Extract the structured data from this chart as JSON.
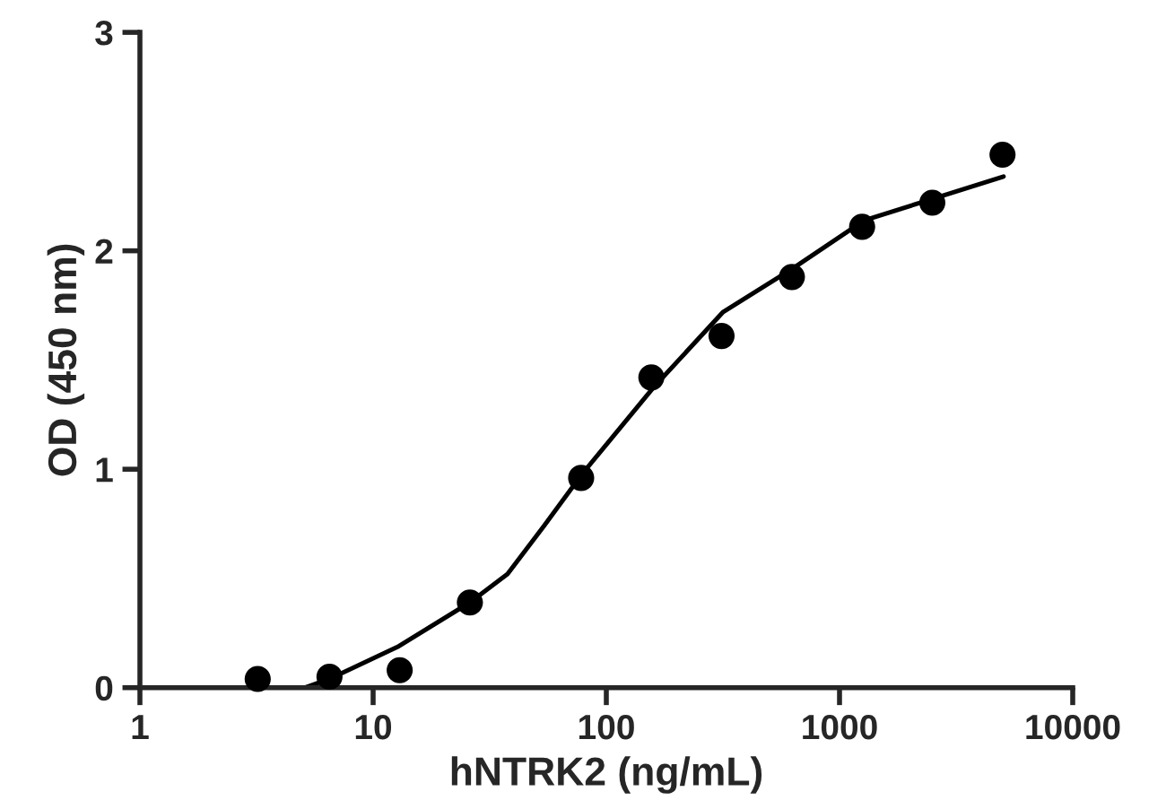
{
  "chart_data": {
    "type": "scatter",
    "xlabel": "hNTRK2 (ng/mL)",
    "ylabel": "OD (450 nm)",
    "log": "x",
    "xlim": [
      1,
      10000
    ],
    "xticks": [
      1,
      10,
      100,
      1000,
      10000
    ],
    "ylim": [
      0,
      3
    ],
    "yticks": [
      0,
      1,
      2,
      3
    ],
    "grid": false,
    "legend": false,
    "series": [
      {
        "marker": "circle",
        "color": "#000000",
        "x": [
          3.2,
          6.5,
          13,
          26,
          78,
          156,
          312,
          625,
          1250,
          2500,
          5000
        ],
        "values": [
          0.04,
          0.05,
          0.08,
          0.39,
          0.96,
          1.42,
          1.61,
          1.88,
          2.11,
          2.22,
          2.44
        ]
      },
      {
        "type": "line",
        "marker": "none",
        "color": "#000000",
        "line_style": "solid",
        "x": [
          5.1,
          6.5,
          12.9,
          26,
          37.7,
          54,
          79,
          158,
          317,
          632,
          1280,
          2550,
          5050
        ],
        "values": [
          0,
          0.04,
          0.19,
          0.39,
          0.52,
          0.74,
          0.98,
          1.37,
          1.72,
          1.92,
          2.14,
          2.24,
          2.34
        ]
      }
    ]
  }
}
